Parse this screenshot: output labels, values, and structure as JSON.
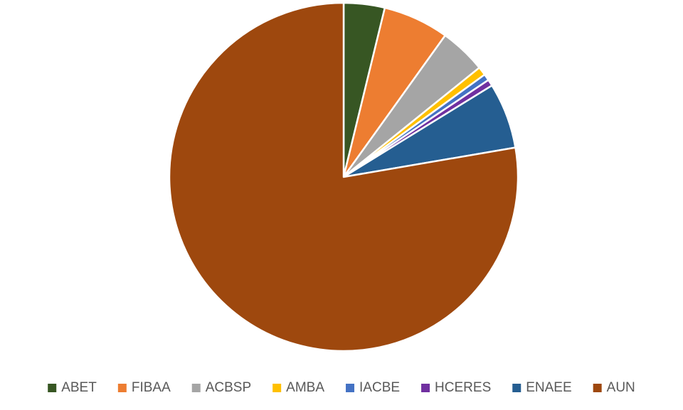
{
  "chart_data": {
    "type": "pie",
    "categories": [
      "ABET",
      "FIBAA",
      "ACBSP",
      "AMBA",
      "IACBE",
      "HCERES",
      "ENAEE",
      "AUN"
    ],
    "values": [
      3.8,
      6.1,
      4.3,
      0.8,
      0.6,
      0.6,
      6.1,
      77.7
    ],
    "colors": [
      "#375623",
      "#ED7D31",
      "#A5A5A5",
      "#FFC000",
      "#4472C4",
      "#7030A0",
      "#255E91",
      "#9E480E"
    ],
    "legend": "bottom"
  }
}
